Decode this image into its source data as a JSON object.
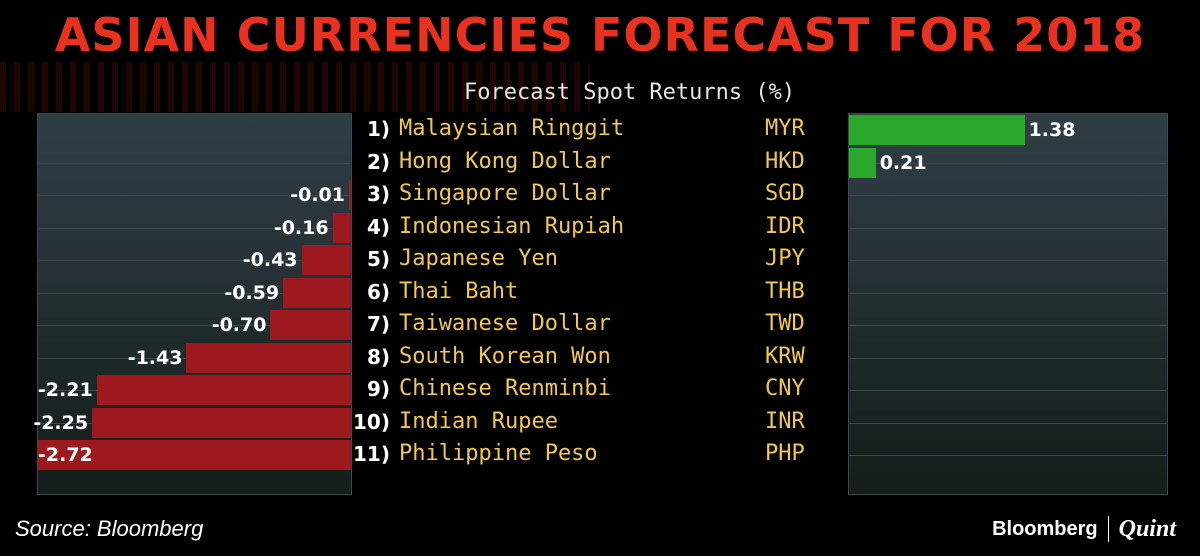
{
  "title": "ASIAN CURRENCIES FORECAST FOR 2018",
  "subtitle": "Forecast Spot Returns (%)",
  "source": "Source: Bloomberg",
  "brand": {
    "primary": "Bloomberg",
    "secondary": "Quint"
  },
  "colors": {
    "title": "#e8321f",
    "negative": "#9e1820",
    "positive": "#2aa82c",
    "names": "#f2c94c"
  },
  "chart_data": {
    "type": "bar",
    "orientation": "horizontal",
    "title": "Forecast Spot Returns (%)",
    "categories": [
      "Malaysian Ringgit",
      "Hong Kong Dollar",
      "Singapore Dollar",
      "Indonesian Rupiah",
      "Japanese Yen",
      "Thai Baht",
      "Taiwanese Dollar",
      "South Korean Won",
      "Chinese Renminbi",
      "Indian Rupee",
      "Philippine Peso"
    ],
    "ranks": [
      "1)",
      "2)",
      "3)",
      "4)",
      "5)",
      "6)",
      "7)",
      "8)",
      "9)",
      "10)",
      "11)"
    ],
    "codes": [
      "MYR",
      "HKD",
      "SGD",
      "IDR",
      "JPY",
      "THB",
      "TWD",
      "KRW",
      "CNY",
      "INR",
      "PHP"
    ],
    "values": [
      1.38,
      0.21,
      -0.01,
      -0.16,
      -0.43,
      -0.59,
      -0.7,
      -1.43,
      -2.21,
      -2.25,
      -2.72
    ],
    "labels": [
      "1.38",
      "0.21",
      "-0.01",
      "-0.16",
      "-0.43",
      "-0.59",
      "-0.70",
      "-1.43",
      "-2.21",
      "-2.25",
      "-2.72"
    ],
    "neg_range": [
      -2.72,
      0
    ],
    "pos_range": [
      0,
      2.5
    ]
  }
}
